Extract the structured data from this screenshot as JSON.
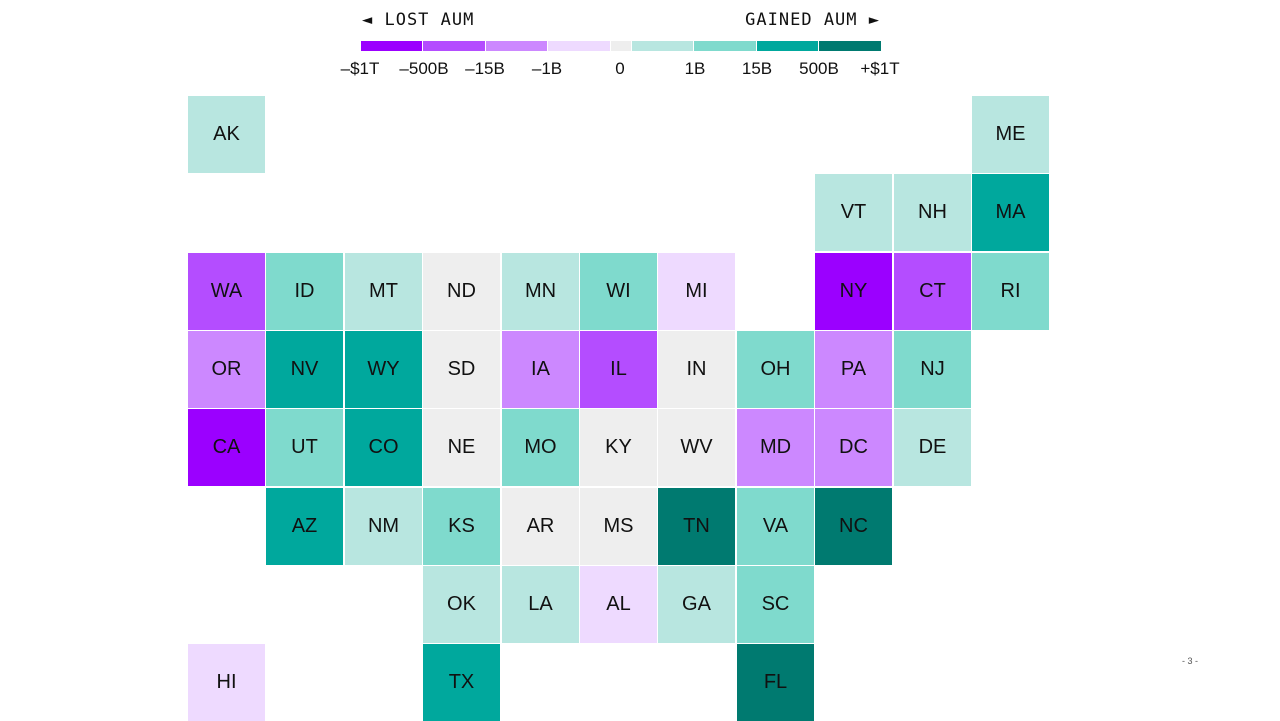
{
  "legend": {
    "left_label": "◄ LOST AUM",
    "right_label": "GAINED AUM ►",
    "colors": {
      "lost_1t": "#9b00ff",
      "lost_500b": "#b44dff",
      "lost_15b": "#cc88ff",
      "lost_1b": "#eedaff",
      "neutral": "#eeeeee",
      "gain_1b": "#b8e6e0",
      "gain_15b": "#7fdacd",
      "gain_500b": "#00a89d",
      "gain_1t": "#007a70"
    },
    "bins": [
      "lost_1t",
      "lost_500b",
      "lost_15b",
      "lost_1b",
      "neutral",
      "gain_1b",
      "gain_15b",
      "gain_500b",
      "gain_1t"
    ],
    "ticks": [
      "–$1T",
      "–500B",
      "–15B",
      "–1B",
      "0",
      "1B",
      "15B",
      "500B",
      "+$1T"
    ]
  },
  "states": [
    {
      "abbr": "AK",
      "bin": "gain_1b"
    },
    {
      "abbr": "ME",
      "bin": "gain_1b"
    },
    {
      "abbr": "VT",
      "bin": "gain_1b"
    },
    {
      "abbr": "NH",
      "bin": "gain_1b"
    },
    {
      "abbr": "MA",
      "bin": "gain_500b"
    },
    {
      "abbr": "WA",
      "bin": "lost_500b"
    },
    {
      "abbr": "ID",
      "bin": "gain_15b"
    },
    {
      "abbr": "MT",
      "bin": "gain_1b"
    },
    {
      "abbr": "ND",
      "bin": "neutral"
    },
    {
      "abbr": "MN",
      "bin": "gain_1b"
    },
    {
      "abbr": "WI",
      "bin": "gain_15b"
    },
    {
      "abbr": "MI",
      "bin": "lost_1b"
    },
    {
      "abbr": "NY",
      "bin": "lost_1t"
    },
    {
      "abbr": "CT",
      "bin": "lost_500b"
    },
    {
      "abbr": "RI",
      "bin": "gain_15b"
    },
    {
      "abbr": "OR",
      "bin": "lost_15b"
    },
    {
      "abbr": "NV",
      "bin": "gain_500b"
    },
    {
      "abbr": "WY",
      "bin": "gain_500b"
    },
    {
      "abbr": "SD",
      "bin": "neutral"
    },
    {
      "abbr": "IA",
      "bin": "lost_15b"
    },
    {
      "abbr": "IL",
      "bin": "lost_500b"
    },
    {
      "abbr": "IN",
      "bin": "neutral"
    },
    {
      "abbr": "OH",
      "bin": "gain_15b"
    },
    {
      "abbr": "PA",
      "bin": "lost_15b"
    },
    {
      "abbr": "NJ",
      "bin": "gain_15b"
    },
    {
      "abbr": "CA",
      "bin": "lost_1t"
    },
    {
      "abbr": "UT",
      "bin": "gain_15b"
    },
    {
      "abbr": "CO",
      "bin": "gain_500b"
    },
    {
      "abbr": "NE",
      "bin": "neutral"
    },
    {
      "abbr": "MO",
      "bin": "gain_15b"
    },
    {
      "abbr": "KY",
      "bin": "neutral"
    },
    {
      "abbr": "WV",
      "bin": "neutral"
    },
    {
      "abbr": "MD",
      "bin": "lost_15b"
    },
    {
      "abbr": "DC",
      "bin": "lost_15b"
    },
    {
      "abbr": "DE",
      "bin": "gain_1b"
    },
    {
      "abbr": "AZ",
      "bin": "gain_500b"
    },
    {
      "abbr": "NM",
      "bin": "gain_1b"
    },
    {
      "abbr": "KS",
      "bin": "gain_15b"
    },
    {
      "abbr": "AR",
      "bin": "neutral"
    },
    {
      "abbr": "MS",
      "bin": "neutral"
    },
    {
      "abbr": "TN",
      "bin": "gain_1t"
    },
    {
      "abbr": "VA",
      "bin": "gain_15b"
    },
    {
      "abbr": "NC",
      "bin": "gain_1t"
    },
    {
      "abbr": "OK",
      "bin": "gain_1b"
    },
    {
      "abbr": "LA",
      "bin": "gain_1b"
    },
    {
      "abbr": "AL",
      "bin": "lost_1b"
    },
    {
      "abbr": "GA",
      "bin": "gain_1b"
    },
    {
      "abbr": "SC",
      "bin": "gain_15b"
    },
    {
      "abbr": "HI",
      "bin": "lost_1b"
    },
    {
      "abbr": "TX",
      "bin": "gain_500b"
    },
    {
      "abbr": "FL",
      "bin": "gain_1t"
    }
  ],
  "page_number": "- 3 -"
}
